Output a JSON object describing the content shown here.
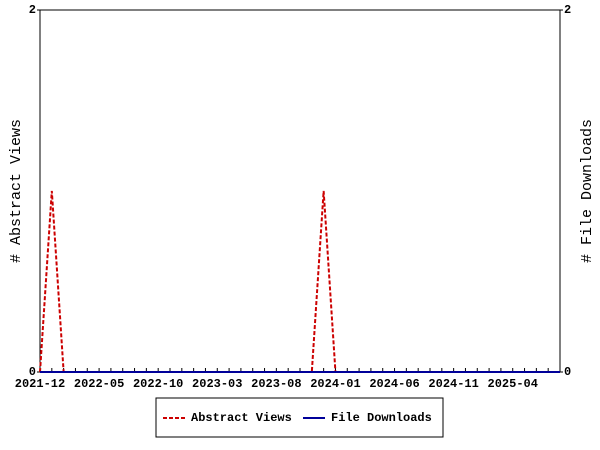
{
  "chart_data": {
    "type": "line",
    "categories": [
      "2021-12",
      null,
      null,
      null,
      null,
      "2022-05",
      null,
      null,
      null,
      null,
      "2022-10",
      null,
      null,
      null,
      null,
      "2023-03",
      null,
      null,
      null,
      null,
      "2023-08",
      null,
      null,
      null,
      null,
      "2024-01",
      null,
      null,
      null,
      null,
      "2024-06",
      null,
      null,
      null,
      null,
      "2024-11",
      null,
      null,
      null,
      null,
      "2025-04",
      null,
      null,
      null,
      null
    ],
    "series": [
      {
        "name": "Abstract Views",
        "color": "#cc0000",
        "dash": true,
        "axis": "y",
        "values": [
          0,
          1,
          0,
          0,
          0,
          0,
          0,
          0,
          0,
          0,
          0,
          0,
          0,
          0,
          0,
          0,
          0,
          0,
          0,
          0,
          0,
          0,
          0,
          0,
          1,
          0,
          0,
          0,
          0,
          0,
          0,
          0,
          0,
          0,
          0,
          0,
          0,
          0,
          0,
          0,
          0,
          0,
          0,
          0,
          0
        ]
      },
      {
        "name": "File Downloads",
        "color": "#000099",
        "dash": false,
        "axis": "y2",
        "values": [
          0,
          0,
          0,
          0,
          0,
          0,
          0,
          0,
          0,
          0,
          0,
          0,
          0,
          0,
          0,
          0,
          0,
          0,
          0,
          0,
          0,
          0,
          0,
          0,
          0,
          0,
          0,
          0,
          0,
          0,
          0,
          0,
          0,
          0,
          0,
          0,
          0,
          0,
          0,
          0,
          0,
          0,
          0,
          0,
          0
        ]
      }
    ],
    "ylabel": "# Abstract Views",
    "y2label": "# File Downloads",
    "ylim": [
      0,
      2
    ],
    "yticks": [
      0,
      2
    ],
    "y2lim": [
      0,
      2
    ],
    "y2ticks": [
      0,
      2
    ],
    "legend": "bottom"
  }
}
